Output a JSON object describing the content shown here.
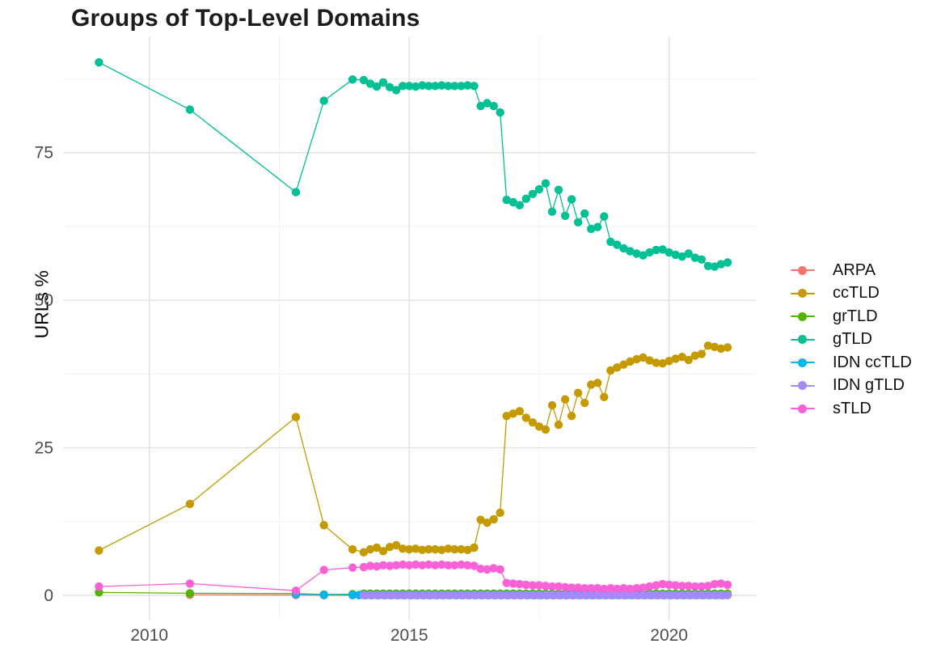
{
  "title": "Groups of Top-Level Domains",
  "chart_data": {
    "type": "line",
    "title": "Groups of Top-Level Domains",
    "xlabel": "",
    "ylabel": "URLs %",
    "grid": true,
    "legend_position": "right",
    "xlim": [
      2008.34,
      2021.67
    ],
    "ylim": [
      -4.25,
      94.7
    ],
    "x_ticks": [
      2010,
      2015,
      2020
    ],
    "x_tick_labels": [
      "2010",
      "2015",
      "2020"
    ],
    "x_minor": [
      2012.5,
      2017.5
    ],
    "y_ticks": [
      0,
      25,
      50,
      75
    ],
    "y_tick_labels": [
      "0",
      "25",
      "50",
      "75"
    ],
    "y_minor": [
      12.5,
      37.5,
      62.5,
      87.5
    ],
    "colors": {
      "grid_major": "#e2e2e2",
      "grid_minor": "#f0f0f0",
      "tick_label": "#4d4d4d",
      "title": "#1c1c1c"
    },
    "series": [
      {
        "name": "ARPA",
        "color": "#F8766D",
        "points": [
          [
            2010.78,
            0.1
          ],
          [
            2012.82,
            0.05
          ],
          [
            2013.36,
            0.03
          ]
        ],
        "flat": {
          "from": 2013.91,
          "to": 2021.125,
          "step": 0.125,
          "value": 0.02
        }
      },
      {
        "name": "ccTLD",
        "color": "#C49A00",
        "points": [
          [
            2009.03,
            7.6
          ],
          [
            2010.78,
            15.5
          ],
          [
            2012.82,
            30.2
          ],
          [
            2013.36,
            11.9
          ],
          [
            2013.91,
            7.8
          ],
          [
            2014.125,
            7.3
          ],
          [
            2014.25,
            7.8
          ],
          [
            2014.375,
            8.1
          ],
          [
            2014.5,
            7.5
          ],
          [
            2014.625,
            8.2
          ],
          [
            2014.75,
            8.5
          ],
          [
            2014.875,
            7.9
          ],
          [
            2015.0,
            7.8
          ],
          [
            2015.125,
            7.9
          ],
          [
            2015.25,
            7.7
          ],
          [
            2015.375,
            7.8
          ],
          [
            2015.5,
            7.8
          ],
          [
            2015.625,
            7.7
          ],
          [
            2015.75,
            7.9
          ],
          [
            2015.875,
            7.8
          ],
          [
            2016.0,
            7.8
          ],
          [
            2016.125,
            7.7
          ],
          [
            2016.25,
            8.1
          ],
          [
            2016.375,
            12.8
          ],
          [
            2016.5,
            12.3
          ],
          [
            2016.625,
            12.9
          ],
          [
            2016.75,
            14.0
          ],
          [
            2016.875,
            30.4
          ],
          [
            2017.0,
            30.8
          ],
          [
            2017.125,
            31.2
          ],
          [
            2017.25,
            30.1
          ],
          [
            2017.375,
            29.3
          ],
          [
            2017.5,
            28.6
          ],
          [
            2017.625,
            28.1
          ],
          [
            2017.75,
            32.2
          ],
          [
            2017.875,
            28.9
          ],
          [
            2018.0,
            33.2
          ],
          [
            2018.125,
            30.4
          ],
          [
            2018.25,
            34.3
          ],
          [
            2018.375,
            32.6
          ],
          [
            2018.5,
            35.7
          ],
          [
            2018.625,
            36.0
          ],
          [
            2018.75,
            33.6
          ],
          [
            2018.875,
            38.1
          ],
          [
            2019.0,
            38.6
          ],
          [
            2019.125,
            39.1
          ],
          [
            2019.25,
            39.6
          ],
          [
            2019.375,
            40.0
          ],
          [
            2019.5,
            40.3
          ],
          [
            2019.625,
            39.8
          ],
          [
            2019.75,
            39.4
          ],
          [
            2019.875,
            39.3
          ],
          [
            2020.0,
            39.7
          ],
          [
            2020.125,
            40.1
          ],
          [
            2020.25,
            40.4
          ],
          [
            2020.375,
            39.9
          ],
          [
            2020.5,
            40.6
          ],
          [
            2020.625,
            40.9
          ],
          [
            2020.75,
            42.3
          ],
          [
            2020.875,
            42.1
          ],
          [
            2021.0,
            41.8
          ],
          [
            2021.125,
            42.0
          ]
        ]
      },
      {
        "name": "grTLD",
        "color": "#53B400",
        "points": [
          [
            2009.03,
            0.5
          ],
          [
            2010.78,
            0.35
          ],
          [
            2012.82,
            0.3
          ],
          [
            2013.36,
            0.15
          ],
          [
            2013.91,
            0.2
          ]
        ],
        "flat": {
          "from": 2014.125,
          "to": 2021.125,
          "step": 0.125,
          "value": 0.3
        }
      },
      {
        "name": "gTLD",
        "color": "#00C094",
        "points": [
          [
            2009.03,
            90.3
          ],
          [
            2010.78,
            82.3
          ],
          [
            2012.82,
            68.3
          ],
          [
            2013.36,
            83.8
          ],
          [
            2013.91,
            87.4
          ],
          [
            2014.125,
            87.3
          ],
          [
            2014.25,
            86.7
          ],
          [
            2014.375,
            86.2
          ],
          [
            2014.5,
            86.9
          ],
          [
            2014.625,
            86.1
          ],
          [
            2014.75,
            85.6
          ],
          [
            2014.875,
            86.3
          ],
          [
            2015.0,
            86.3
          ],
          [
            2015.125,
            86.2
          ],
          [
            2015.25,
            86.4
          ],
          [
            2015.375,
            86.3
          ],
          [
            2015.5,
            86.3
          ],
          [
            2015.625,
            86.4
          ],
          [
            2015.75,
            86.3
          ],
          [
            2015.875,
            86.3
          ],
          [
            2016.0,
            86.3
          ],
          [
            2016.125,
            86.4
          ],
          [
            2016.25,
            86.3
          ],
          [
            2016.375,
            82.9
          ],
          [
            2016.5,
            83.4
          ],
          [
            2016.625,
            82.9
          ],
          [
            2016.75,
            81.8
          ],
          [
            2016.875,
            67.0
          ],
          [
            2017.0,
            66.6
          ],
          [
            2017.125,
            66.1
          ],
          [
            2017.25,
            67.2
          ],
          [
            2017.375,
            68.0
          ],
          [
            2017.5,
            68.8
          ],
          [
            2017.625,
            69.8
          ],
          [
            2017.75,
            65.0
          ],
          [
            2017.875,
            68.7
          ],
          [
            2018.0,
            64.3
          ],
          [
            2018.125,
            67.1
          ],
          [
            2018.25,
            63.2
          ],
          [
            2018.375,
            64.7
          ],
          [
            2018.5,
            62.1
          ],
          [
            2018.625,
            62.4
          ],
          [
            2018.75,
            64.2
          ],
          [
            2018.875,
            59.9
          ],
          [
            2019.0,
            59.4
          ],
          [
            2019.125,
            58.8
          ],
          [
            2019.25,
            58.3
          ],
          [
            2019.375,
            57.9
          ],
          [
            2019.5,
            57.6
          ],
          [
            2019.625,
            58.1
          ],
          [
            2019.75,
            58.5
          ],
          [
            2019.875,
            58.6
          ],
          [
            2020.0,
            58.1
          ],
          [
            2020.125,
            57.7
          ],
          [
            2020.25,
            57.4
          ],
          [
            2020.375,
            57.9
          ],
          [
            2020.5,
            57.2
          ],
          [
            2020.625,
            56.9
          ],
          [
            2020.75,
            55.8
          ],
          [
            2020.875,
            55.7
          ],
          [
            2021.0,
            56.1
          ],
          [
            2021.125,
            56.4
          ]
        ]
      },
      {
        "name": "IDN ccTLD",
        "color": "#00B6EB",
        "points": [
          [
            2012.82,
            0.2
          ],
          [
            2013.36,
            0.08
          ]
        ],
        "flat": {
          "from": 2013.91,
          "to": 2021.125,
          "step": 0.125,
          "value": 0.08
        }
      },
      {
        "name": "IDN gTLD",
        "color": "#A58AFF",
        "points": [],
        "flat": {
          "from": 2014.125,
          "to": 2021.125,
          "step": 0.125,
          "value": 0.03
        }
      },
      {
        "name": "sTLD",
        "color": "#FB61D7",
        "points": [
          [
            2009.03,
            1.5
          ],
          [
            2010.78,
            2.0
          ],
          [
            2012.82,
            0.8
          ],
          [
            2013.36,
            4.3
          ],
          [
            2013.91,
            4.7
          ],
          [
            2014.125,
            4.8
          ],
          [
            2014.25,
            5.0
          ],
          [
            2014.375,
            4.9
          ],
          [
            2014.5,
            5.1
          ],
          [
            2014.625,
            5.0
          ],
          [
            2014.75,
            5.1
          ],
          [
            2014.875,
            5.2
          ],
          [
            2015.0,
            5.1
          ],
          [
            2015.125,
            5.2
          ],
          [
            2015.25,
            5.1
          ],
          [
            2015.375,
            5.2
          ],
          [
            2015.5,
            5.1
          ],
          [
            2015.625,
            5.2
          ],
          [
            2015.75,
            5.1
          ],
          [
            2015.875,
            5.1
          ],
          [
            2016.0,
            5.2
          ],
          [
            2016.125,
            5.1
          ],
          [
            2016.25,
            5.0
          ],
          [
            2016.375,
            4.5
          ],
          [
            2016.5,
            4.4
          ],
          [
            2016.625,
            4.6
          ],
          [
            2016.75,
            4.4
          ],
          [
            2016.875,
            2.1
          ],
          [
            2017.0,
            2.0
          ],
          [
            2017.125,
            1.9
          ],
          [
            2017.25,
            1.8
          ],
          [
            2017.375,
            1.7
          ],
          [
            2017.5,
            1.7
          ],
          [
            2017.625,
            1.6
          ],
          [
            2017.75,
            1.5
          ],
          [
            2017.875,
            1.5
          ],
          [
            2018.0,
            1.4
          ],
          [
            2018.125,
            1.3
          ],
          [
            2018.25,
            1.3
          ],
          [
            2018.375,
            1.2
          ],
          [
            2018.5,
            1.2
          ],
          [
            2018.625,
            1.2
          ],
          [
            2018.75,
            1.1
          ],
          [
            2018.875,
            1.2
          ],
          [
            2019.0,
            1.1
          ],
          [
            2019.125,
            1.2
          ],
          [
            2019.25,
            1.1
          ],
          [
            2019.375,
            1.2
          ],
          [
            2019.5,
            1.3
          ],
          [
            2019.625,
            1.5
          ],
          [
            2019.75,
            1.7
          ],
          [
            2019.875,
            1.9
          ],
          [
            2020.0,
            1.8
          ],
          [
            2020.125,
            1.7
          ],
          [
            2020.25,
            1.6
          ],
          [
            2020.375,
            1.6
          ],
          [
            2020.5,
            1.5
          ],
          [
            2020.625,
            1.5
          ],
          [
            2020.75,
            1.6
          ],
          [
            2020.875,
            1.9
          ],
          [
            2021.0,
            2.0
          ],
          [
            2021.125,
            1.8
          ]
        ]
      }
    ]
  }
}
